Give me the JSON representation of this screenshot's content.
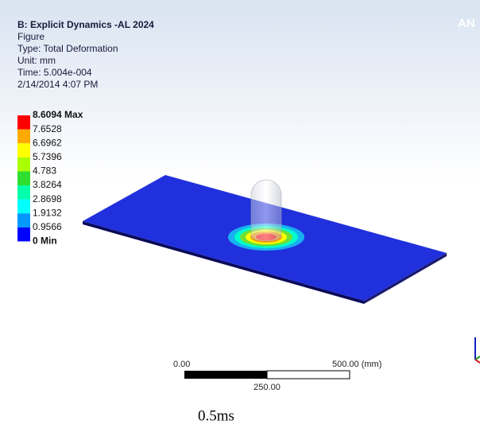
{
  "header": {
    "title": "B: Explicit Dynamics -AL 2024",
    "lines": [
      "Figure",
      "Type: Total Deformation",
      "Unit: mm",
      "Time: 5.004e-004",
      "2/14/2014 4:07 PM"
    ],
    "brand": "AN"
  },
  "legend": {
    "labels": [
      "8.6094 Max",
      "7.6528",
      "6.6962",
      "5.7396",
      "4.783",
      "3.8264",
      "2.8698",
      "1.9132",
      "0.9566",
      "0 Min"
    ],
    "colors": [
      "#ff0000",
      "#ffaa00",
      "#ffff00",
      "#aaff00",
      "#2fdf2f",
      "#00ffaa",
      "#00ffff",
      "#0099ff",
      "#0000ff"
    ]
  },
  "scale_bar": {
    "left": "0.00",
    "right": "500.00 (mm)",
    "middle": "250.00"
  },
  "caption": "0.5ms"
}
